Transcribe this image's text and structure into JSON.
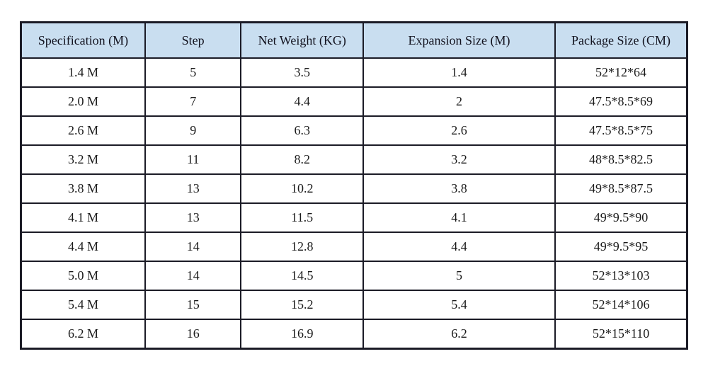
{
  "table": {
    "columns": [
      "Specification (M)",
      "Step",
      "Net Weight (KG)",
      "Expansion Size (M)",
      "Package Size (CM)"
    ],
    "rows": [
      [
        "1.4 M",
        "5",
        "3.5",
        "1.4",
        "52*12*64"
      ],
      [
        "2.0 M",
        "7",
        "4.4",
        "2",
        "47.5*8.5*69"
      ],
      [
        "2.6 M",
        "9",
        "6.3",
        "2.6",
        "47.5*8.5*75"
      ],
      [
        "3.2 M",
        "11",
        "8.2",
        "3.2",
        "48*8.5*82.5"
      ],
      [
        "3.8 M",
        "13",
        "10.2",
        "3.8",
        "49*8.5*87.5"
      ],
      [
        "4.1 M",
        "13",
        "11.5",
        "4.1",
        "49*9.5*90"
      ],
      [
        "4.4 M",
        "14",
        "12.8",
        "4.4",
        "49*9.5*95"
      ],
      [
        "5.0 M",
        "14",
        "14.5",
        "5",
        "52*13*103"
      ],
      [
        "5.4 M",
        "15",
        "15.2",
        "5.4",
        "52*14*106"
      ],
      [
        "6.2 M",
        "16",
        "16.9",
        "6.2",
        "52*15*110"
      ]
    ],
    "colors": {
      "header_bg": "#c9def0",
      "border": "#1b1b26",
      "header_text": "#12121e",
      "body_text": "#1a1a1a",
      "page_bg": "#ffffff"
    }
  }
}
